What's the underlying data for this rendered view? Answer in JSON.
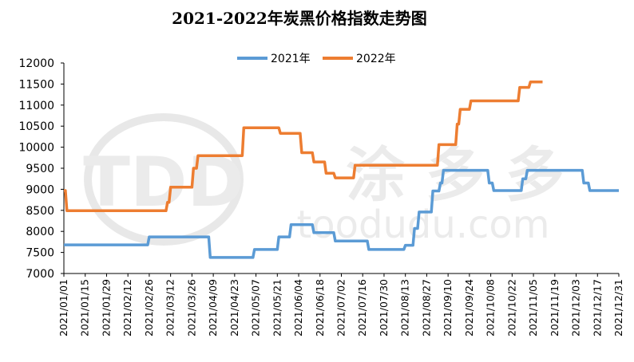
{
  "chart_data": {
    "type": "line",
    "title": "2021-2022年炭黑价格指数走势图",
    "xlabel": "",
    "ylabel": "",
    "ylim": [
      7000,
      12000
    ],
    "yticks": [
      7000,
      7500,
      8000,
      8500,
      9000,
      9500,
      10000,
      10500,
      11000,
      11500,
      12000
    ],
    "x_range": [
      "2021/01/01",
      "2021/12/31"
    ],
    "xticks": [
      "2021/01/01",
      "2021/01/15",
      "2021/01/29",
      "2021/02/12",
      "2021/02/26",
      "2021/03/12",
      "2021/03/26",
      "2021/04/09",
      "2021/04/23",
      "2021/05/07",
      "2021/05/21",
      "2021/06/04",
      "2021/06/18",
      "2021/07/02",
      "2021/07/16",
      "2021/07/30",
      "2021/08/13",
      "2021/08/27",
      "2021/09/10",
      "2021/09/24",
      "2021/10/08",
      "2021/10/22",
      "2021/11/05",
      "2021/11/19",
      "2021/12/03",
      "2021/12/17",
      "2021/12/31"
    ],
    "grid": false,
    "legend_position": "top",
    "watermark": "toodudu.com",
    "series": [
      {
        "name": "2021年",
        "color": "#5B9BD5",
        "points": [
          [
            "2021/01/01",
            7680
          ],
          [
            "2021/02/25",
            7680
          ],
          [
            "2021/02/26",
            7870
          ],
          [
            "2021/04/06",
            7870
          ],
          [
            "2021/04/07",
            7380
          ],
          [
            "2021/05/05",
            7380
          ],
          [
            "2021/05/06",
            7570
          ],
          [
            "2021/05/21",
            7570
          ],
          [
            "2021/05/22",
            7870
          ],
          [
            "2021/05/29",
            7870
          ],
          [
            "2021/05/30",
            8160
          ],
          [
            "2021/06/13",
            8160
          ],
          [
            "2021/06/14",
            7970
          ],
          [
            "2021/06/27",
            7970
          ],
          [
            "2021/06/28",
            7770
          ],
          [
            "2021/07/19",
            7770
          ],
          [
            "2021/07/20",
            7570
          ],
          [
            "2021/08/12",
            7570
          ],
          [
            "2021/08/13",
            7670
          ],
          [
            "2021/08/18",
            7670
          ],
          [
            "2021/08/19",
            8070
          ],
          [
            "2021/08/21",
            8070
          ],
          [
            "2021/08/22",
            8460
          ],
          [
            "2021/08/30",
            8460
          ],
          [
            "2021/08/31",
            8960
          ],
          [
            "2021/09/04",
            8960
          ],
          [
            "2021/09/05",
            9150
          ],
          [
            "2021/09/06",
            9150
          ],
          [
            "2021/09/07",
            9450
          ],
          [
            "2021/10/06",
            9450
          ],
          [
            "2021/10/07",
            9150
          ],
          [
            "2021/10/09",
            9150
          ],
          [
            "2021/10/10",
            8970
          ],
          [
            "2021/10/28",
            8970
          ],
          [
            "2021/10/29",
            9250
          ],
          [
            "2021/10/31",
            9250
          ],
          [
            "2021/11/01",
            9450
          ],
          [
            "2021/12/07",
            9450
          ],
          [
            "2021/12/08",
            9150
          ],
          [
            "2021/12/11",
            9150
          ],
          [
            "2021/12/12",
            8970
          ],
          [
            "2021/12/31",
            8970
          ]
        ]
      },
      {
        "name": "2022年",
        "color": "#ED7D31",
        "points": [
          [
            "2021/01/01",
            8970
          ],
          [
            "2021/01/02",
            8970
          ],
          [
            "2021/01/03",
            8490
          ],
          [
            "2021/03/09",
            8490
          ],
          [
            "2021/03/10",
            8690
          ],
          [
            "2021/03/11",
            8690
          ],
          [
            "2021/03/12",
            9050
          ],
          [
            "2021/03/26",
            9050
          ],
          [
            "2021/03/27",
            9500
          ],
          [
            "2021/03/29",
            9500
          ],
          [
            "2021/03/30",
            9800
          ],
          [
            "2021/04/28",
            9800
          ],
          [
            "2021/04/29",
            10460
          ],
          [
            "2021/05/22",
            10460
          ],
          [
            "2021/05/23",
            10330
          ],
          [
            "2021/06/05",
            10330
          ],
          [
            "2021/06/06",
            9870
          ],
          [
            "2021/06/13",
            9870
          ],
          [
            "2021/06/14",
            9650
          ],
          [
            "2021/06/21",
            9650
          ],
          [
            "2021/06/22",
            9380
          ],
          [
            "2021/06/27",
            9380
          ],
          [
            "2021/06/28",
            9270
          ],
          [
            "2021/07/10",
            9270
          ],
          [
            "2021/07/11",
            9570
          ],
          [
            "2021/09/03",
            9570
          ],
          [
            "2021/09/04",
            10060
          ],
          [
            "2021/09/15",
            10060
          ],
          [
            "2021/09/16",
            10550
          ],
          [
            "2021/09/17",
            10550
          ],
          [
            "2021/09/18",
            10900
          ],
          [
            "2021/09/24",
            10900
          ],
          [
            "2021/09/25",
            11100
          ],
          [
            "2021/10/26",
            11100
          ],
          [
            "2021/10/27",
            11420
          ],
          [
            "2021/11/02",
            11420
          ],
          [
            "2021/11/03",
            11550
          ],
          [
            "2021/11/11",
            11550
          ]
        ]
      }
    ]
  }
}
